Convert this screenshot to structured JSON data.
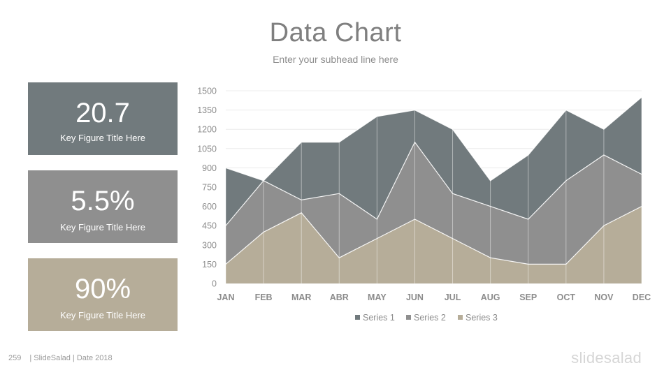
{
  "header": {
    "title": "Data Chart",
    "subtitle": "Enter your subhead line here"
  },
  "cards": [
    {
      "value": "20.7",
      "label": "Key Figure Title Here",
      "color": "#717a7d"
    },
    {
      "value": "5.5%",
      "label": "Key Figure Title Here",
      "color": "#8f8f8f"
    },
    {
      "value": "90%",
      "label": "Key Figure Title Here",
      "color": "#b6ad99"
    }
  ],
  "footer": {
    "page_number": "259",
    "text": "| SlideSalad | Date 2018",
    "brand": "slidesalad"
  },
  "chart_data": {
    "type": "area",
    "categories": [
      "JAN",
      "FEB",
      "MAR",
      "ABR",
      "MAY",
      "JUN",
      "JUL",
      "AUG",
      "SEP",
      "OCT",
      "NOV",
      "DEC"
    ],
    "series": [
      {
        "name": "Series 1",
        "color": "#717a7d",
        "values": [
          450,
          0,
          450,
          400,
          800,
          250,
          500,
          200,
          500,
          550,
          200,
          600
        ]
      },
      {
        "name": "Series 2",
        "color": "#8f8f8f",
        "values": [
          300,
          400,
          100,
          500,
          150,
          600,
          350,
          400,
          350,
          650,
          550,
          250
        ]
      },
      {
        "name": "Series 3",
        "color": "#b6ad99",
        "values": [
          150,
          400,
          550,
          200,
          350,
          500,
          350,
          200,
          150,
          150,
          450,
          600
        ]
      }
    ],
    "stacked": true,
    "y_ticks": [
      "0",
      "150",
      "300",
      "450",
      "600",
      "750",
      "900",
      "1050",
      "1200",
      "1350",
      "1500"
    ],
    "ylim": [
      0,
      1500
    ],
    "grid": true,
    "legend_position": "bottom"
  }
}
